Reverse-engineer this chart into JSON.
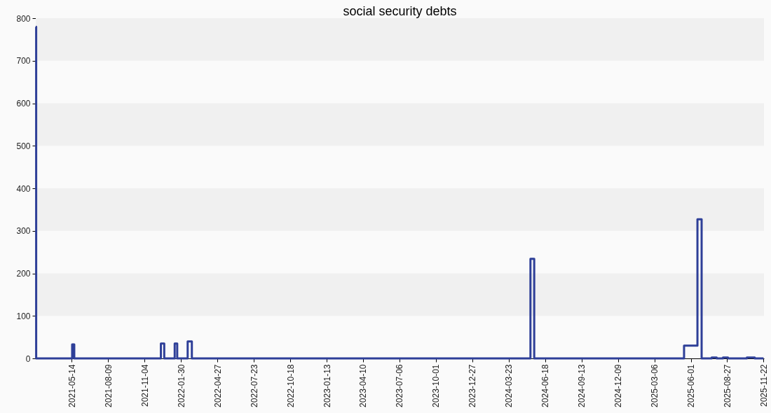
{
  "chart_data": {
    "type": "step",
    "title": "social security debts",
    "x": [
      "2021-02-17",
      "2021-02-18",
      "2021-05-15",
      "2021-05-20",
      "2021-12-13",
      "2021-12-21",
      "2022-01-15",
      "2022-01-21",
      "2022-02-15",
      "2022-02-25",
      "2024-05-14",
      "2024-05-23",
      "2025-05-16",
      "2025-06-17",
      "2025-06-27",
      "2025-07-21",
      "2025-08-02",
      "2025-08-17",
      "2025-08-29",
      "2025-10-13",
      "2025-11-01",
      "2025-11-22"
    ],
    "series": [
      {
        "color": "#2e3f98",
        "values": [
          780,
          0,
          33,
          0,
          35,
          0,
          35,
          0,
          40,
          0,
          234,
          0,
          30,
          327,
          0,
          2,
          0,
          2,
          0,
          2,
          0,
          0
        ]
      }
    ],
    "xlim": [
      "2021-02-17",
      "2025-11-23"
    ],
    "ylim": [
      0,
      800
    ],
    "xticks": [
      "2021-05-14",
      "2021-08-09",
      "2021-11-04",
      "2022-01-30",
      "2022-04-27",
      "2022-07-23",
      "2022-10-18",
      "2023-01-13",
      "2023-04-10",
      "2023-07-06",
      "2023-10-01",
      "2023-12-27",
      "2024-03-23",
      "2024-06-18",
      "2024-09-13",
      "2024-12-09",
      "2025-03-06",
      "2025-06-01",
      "2025-08-27",
      "2025-11-22"
    ],
    "yticks": [
      0,
      100,
      200,
      300,
      400,
      500,
      600,
      700,
      800
    ],
    "bands": [
      {
        "axis": "y",
        "from": 100,
        "to": 200,
        "color": "#f0f0f0"
      },
      {
        "axis": "y",
        "from": 300,
        "to": 400,
        "color": "#f0f0f0"
      },
      {
        "axis": "y",
        "from": 500,
        "to": 600,
        "color": "#f0f0f0"
      },
      {
        "axis": "y",
        "from": 700,
        "to": 800,
        "color": "#f0f0f0"
      }
    ],
    "line_style": "solid"
  }
}
